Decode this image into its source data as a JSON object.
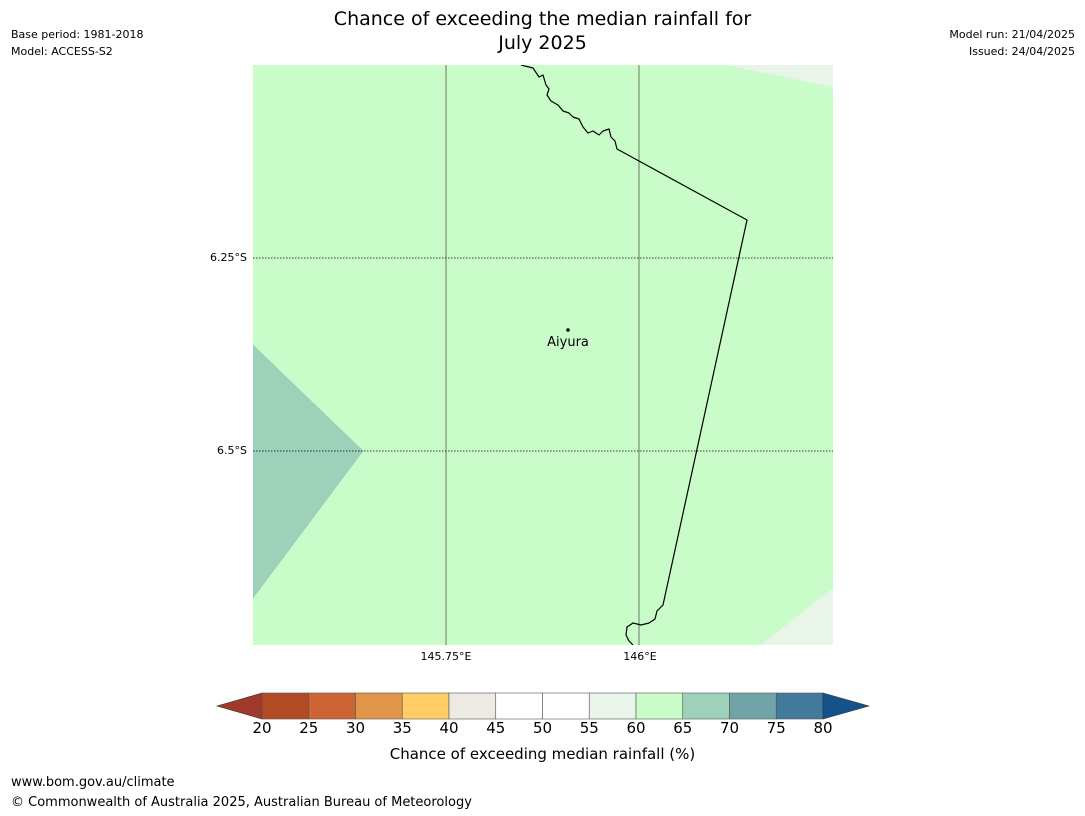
{
  "header": {
    "title_line1": "Chance of exceeding the median rainfall for",
    "title_line2": "July 2025",
    "base_period": "Base period: 1981-2018",
    "model": "Model: ACCESS-S2",
    "model_run": "Model run: 21/04/2025",
    "issued": "Issued: 24/04/2025"
  },
  "map": {
    "place_label": "Aiyura",
    "lat_labels": [
      "6.25°S",
      "6.5°S"
    ],
    "lon_labels": [
      "145.75°E",
      "146°E"
    ],
    "colors": {
      "band_60_65": "#c9fcc9",
      "band_65_70": "#9dd1ba",
      "band_55_60": "#e9f5e9"
    }
  },
  "colorbar": {
    "ticks": [
      "20",
      "25",
      "30",
      "35",
      "40",
      "45",
      "50",
      "55",
      "60",
      "65",
      "70",
      "75",
      "80"
    ],
    "colors": [
      "#a0392a",
      "#b34a26",
      "#cd6433",
      "#e09548",
      "#ffcc66",
      "#ede9e3",
      "#ffffff",
      "#ffffff",
      "#e9f5e9",
      "#c9fcc9",
      "#9dd1ba",
      "#6fa5a6",
      "#417a9b",
      "#15528a"
    ],
    "label": "Chance of exceeding median rainfall (%)"
  },
  "footer": {
    "url": "www.bom.gov.au/climate",
    "copyright": "© Commonwealth of Australia 2025, Australian Bureau of Meteorology"
  }
}
